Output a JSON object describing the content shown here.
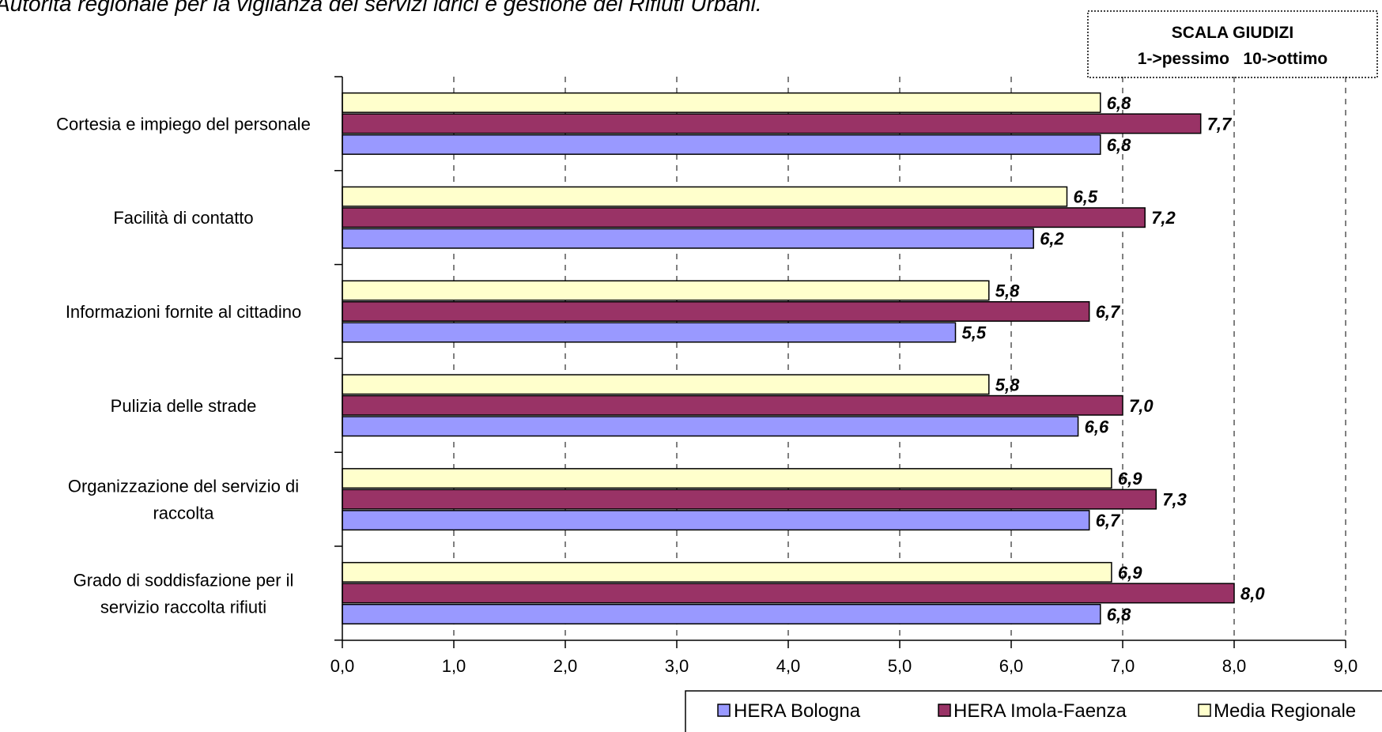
{
  "header": {
    "title": "Autorità regionale per la vigilanza dei servizi idrici e gestione dei Rifiuti Urbani."
  },
  "scale_box": {
    "line1": "SCALA GIUDIZI",
    "line2": "1->pessimo   10->ottimo"
  },
  "colors": {
    "hera_bologna": "#9999FF",
    "hera_imola_faenza": "#993366",
    "media_regionale": "#FFFFCC"
  },
  "chart_data": {
    "type": "bar",
    "orientation": "horizontal",
    "categories": [
      "Cortesia e impiego del personale",
      "Facilità di contatto",
      "Informazioni fornite al cittadino",
      "Pulizia delle strade",
      "Organizzazione del servizio di raccolta",
      "Grado di soddisfazione per il servizio raccolta rifiuti"
    ],
    "category_lines": [
      [
        "Cortesia e impiego del personale"
      ],
      [
        "Facilità di contatto"
      ],
      [
        "Informazioni fornite al cittadino"
      ],
      [
        "Pulizia delle strade"
      ],
      [
        "Organizzazione del servizio di",
        "raccolta"
      ],
      [
        "Grado di soddisfazione per il",
        "servizio raccolta rifiuti"
      ]
    ],
    "series": [
      {
        "name": "HERA Bologna",
        "values": [
          6.8,
          6.2,
          5.5,
          6.6,
          6.7,
          6.8
        ],
        "labels": [
          "6,8",
          "6,2",
          "5,5",
          "6,6",
          "6,7",
          "6,8"
        ]
      },
      {
        "name": "HERA Imola-Faenza",
        "values": [
          7.7,
          7.2,
          6.7,
          7.0,
          7.3,
          8.0
        ],
        "labels": [
          "7,7",
          "7,2",
          "6,7",
          "7,0",
          "7,3",
          "8,0"
        ]
      },
      {
        "name": "Media Regionale",
        "values": [
          6.8,
          6.5,
          5.8,
          5.8,
          6.9,
          6.9
        ],
        "labels": [
          "6,8",
          "6,5",
          "5,8",
          "5,8",
          "6,9",
          "6,9"
        ]
      }
    ],
    "xlim": [
      0,
      9
    ],
    "ticks": [
      "0,0",
      "1,0",
      "2,0",
      "3,0",
      "4,0",
      "5,0",
      "6,0",
      "7,0",
      "8,0",
      "9,0"
    ],
    "grid": "vertical dashed",
    "legend": "bottom-right"
  }
}
